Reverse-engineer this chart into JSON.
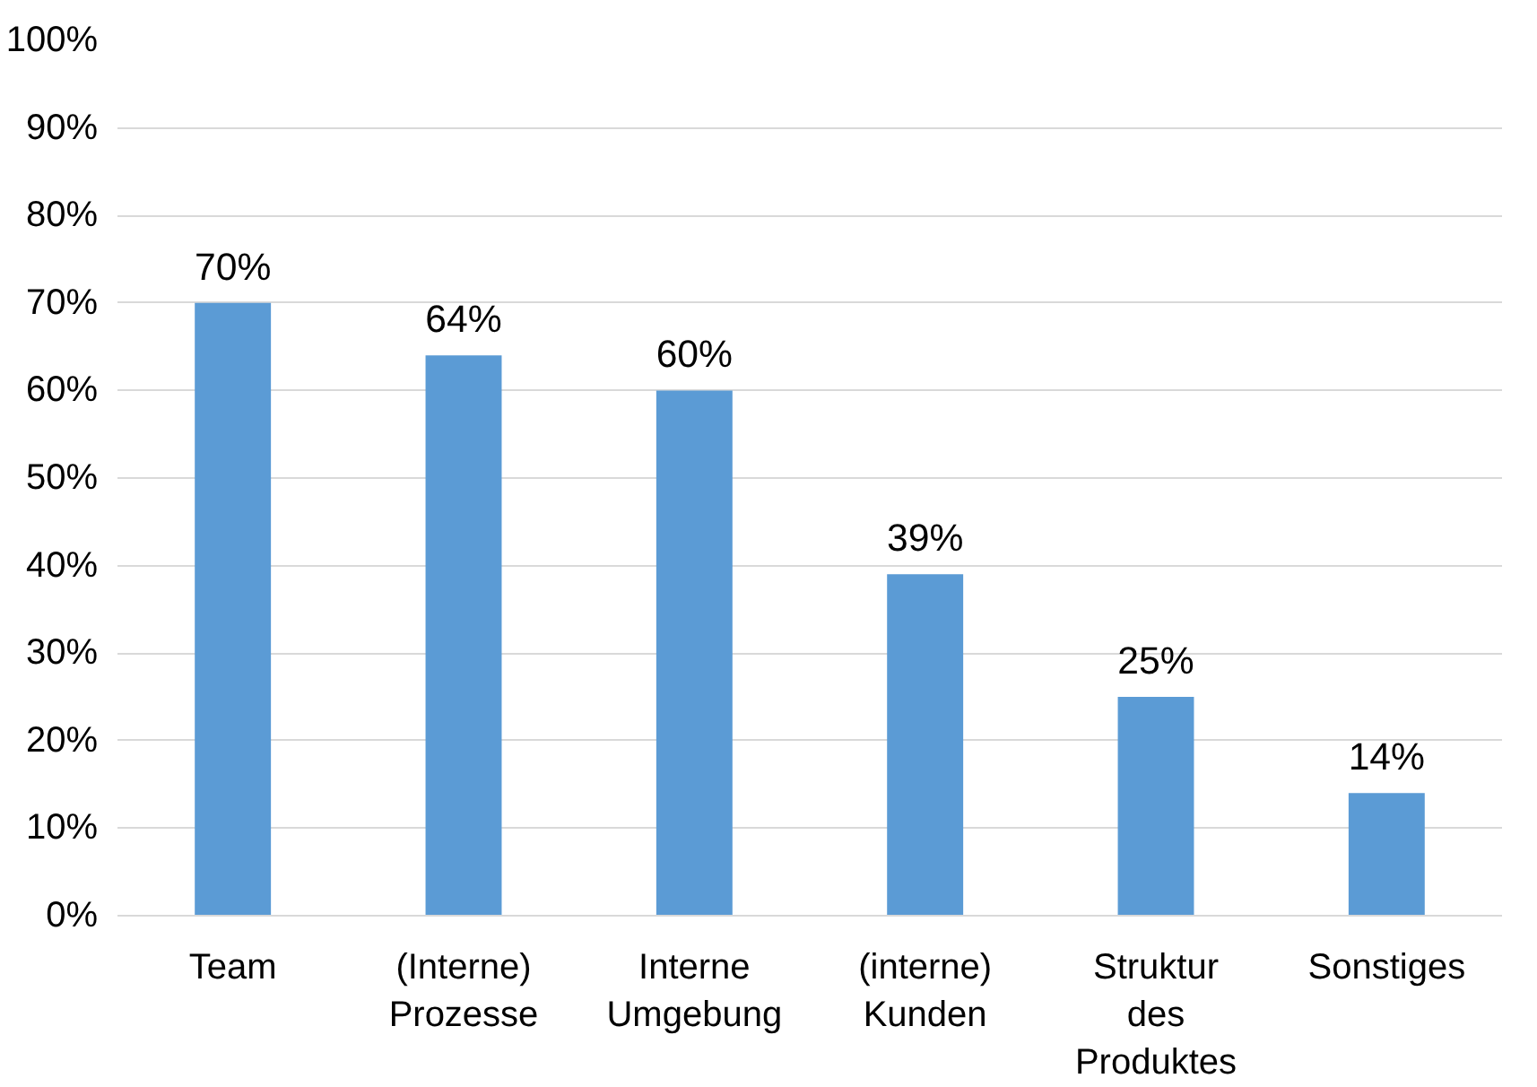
{
  "chart_data": {
    "type": "bar",
    "categories": [
      "Team",
      "(Interne)\nProzesse",
      "Interne\nUmgebung",
      "(interne)\nKunden",
      "Struktur\ndes\nProduktes",
      "Sonstiges"
    ],
    "values": [
      70,
      64,
      60,
      39,
      25,
      14
    ],
    "value_labels": [
      "70%",
      "64%",
      "60%",
      "39%",
      "25%",
      "14%"
    ],
    "color": "#5b9bd5",
    "ylim": [
      0,
      100
    ],
    "yticks": [
      {
        "value": 0,
        "label": "0%"
      },
      {
        "value": 10,
        "label": "10%"
      },
      {
        "value": 20,
        "label": "20%"
      },
      {
        "value": 30,
        "label": "30%"
      },
      {
        "value": 40,
        "label": "40%"
      },
      {
        "value": 50,
        "label": "50%"
      },
      {
        "value": 60,
        "label": "60%"
      },
      {
        "value": 70,
        "label": "70%"
      },
      {
        "value": 80,
        "label": "80%"
      },
      {
        "value": 90,
        "label": "90%"
      },
      {
        "value": 100,
        "label": "100%"
      }
    ],
    "grid": "y"
  }
}
